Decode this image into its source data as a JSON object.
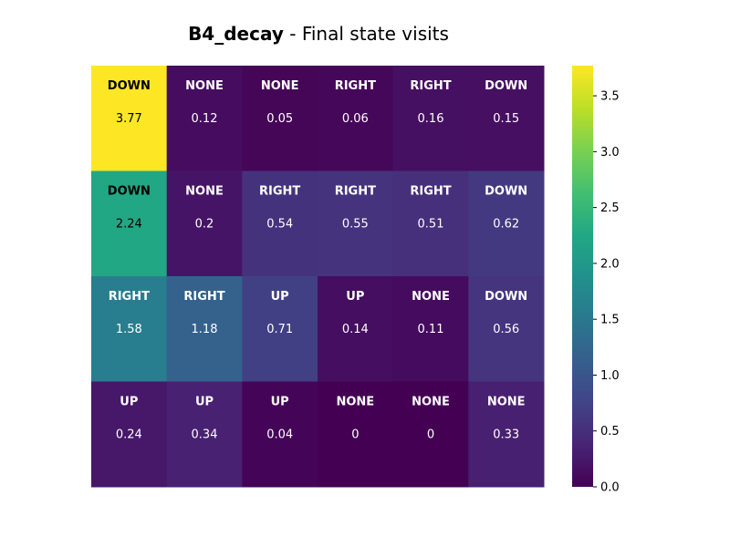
{
  "chart_data": {
    "type": "heatmap",
    "title_bold": "B4_decay",
    "title_rest": " - Final state visits",
    "rows": 4,
    "cols": 6,
    "actions": [
      [
        "DOWN",
        "NONE",
        "NONE",
        "RIGHT",
        "RIGHT",
        "DOWN"
      ],
      [
        "DOWN",
        "NONE",
        "RIGHT",
        "RIGHT",
        "RIGHT",
        "DOWN"
      ],
      [
        "RIGHT",
        "RIGHT",
        "UP",
        "UP",
        "NONE",
        "DOWN"
      ],
      [
        "UP",
        "UP",
        "UP",
        "NONE",
        "NONE",
        "NONE"
      ]
    ],
    "values": [
      [
        3.77,
        0.12,
        0.05,
        0.06,
        0.16,
        0.15
      ],
      [
        2.24,
        0.2,
        0.54,
        0.55,
        0.51,
        0.62
      ],
      [
        1.58,
        1.18,
        0.71,
        0.14,
        0.11,
        0.56
      ],
      [
        0.24,
        0.34,
        0.04,
        0,
        0,
        0.33
      ]
    ],
    "colormap": "viridis",
    "colorbar": {
      "vmin": 0,
      "vmax": 3.77,
      "ticks": [
        0.0,
        0.5,
        1.0,
        1.5,
        2.0,
        2.5,
        3.0,
        3.5
      ],
      "tick_labels": [
        "0.0",
        "0.5",
        "1.0",
        "1.5",
        "2.0",
        "2.5",
        "3.0",
        "3.5"
      ]
    },
    "grid": false
  }
}
